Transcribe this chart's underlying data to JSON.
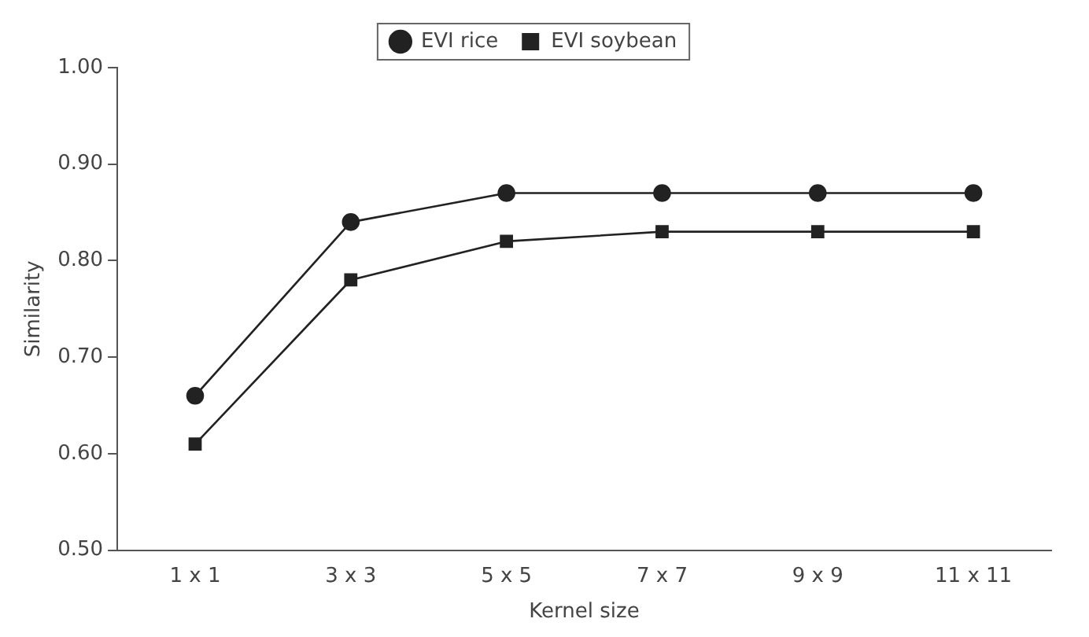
{
  "chart_data": {
    "type": "line",
    "xlabel": "Kernel size",
    "ylabel": "Similarity",
    "categories": [
      "1 x 1",
      "3 x 3",
      "5 x 5",
      "7 x 7",
      "9 x 9",
      "11 x 11"
    ],
    "series": [
      {
        "name": "EVI rice",
        "color": "#222222",
        "marker": "circle",
        "values": [
          0.66,
          0.84,
          0.87,
          0.87,
          0.87,
          0.87
        ]
      },
      {
        "name": "EVI soybean",
        "color": "#222222",
        "marker": "square",
        "values": [
          0.61,
          0.78,
          0.82,
          0.83,
          0.83,
          0.83
        ]
      }
    ],
    "ylim": [
      0.5,
      1.0
    ],
    "yticks": [
      {
        "value": 0.5,
        "label": "0.50"
      },
      {
        "value": 0.6,
        "label": "0.60"
      },
      {
        "value": 0.7,
        "label": "0.70"
      },
      {
        "value": 0.8,
        "label": "0.80"
      },
      {
        "value": 0.9,
        "label": "0.90"
      },
      {
        "value": 1.0,
        "label": "1.00"
      }
    ],
    "grid": false,
    "legend": "top",
    "line_style": "solid"
  }
}
